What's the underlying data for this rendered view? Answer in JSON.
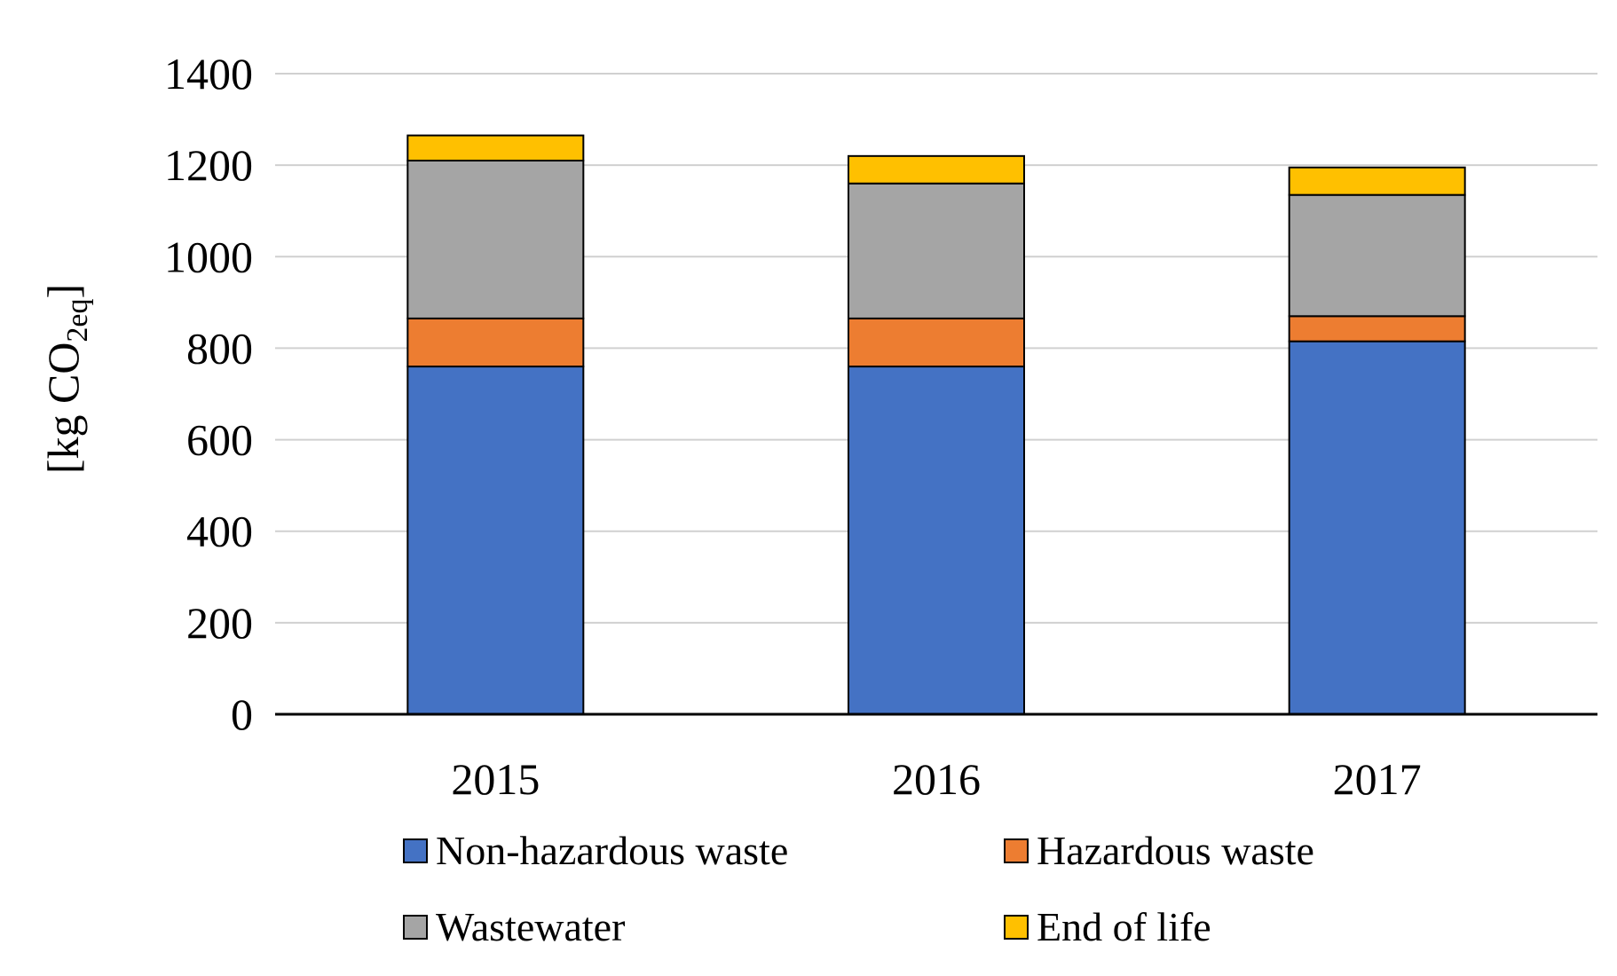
{
  "chart_data": {
    "type": "bar",
    "stacked": true,
    "categories": [
      "2015",
      "2016",
      "2017"
    ],
    "series": [
      {
        "name": "Non-hazardous waste",
        "color": "#4472C4",
        "values": [
          760,
          760,
          815
        ]
      },
      {
        "name": "Hazardous waste",
        "color": "#ED7D31",
        "values": [
          105,
          105,
          55
        ]
      },
      {
        "name": "Wastewater",
        "color": "#A5A5A5",
        "values": [
          345,
          295,
          265
        ]
      },
      {
        "name": "End of life",
        "color": "#FFC000",
        "values": [
          55,
          60,
          60
        ]
      }
    ],
    "ylabel_main": "[kg CO",
    "ylabel_sub": "2eq",
    "ylabel_close": "]",
    "ylim": [
      0,
      1400
    ],
    "yticks": [
      "0",
      "200",
      "400",
      "600",
      "800",
      "1000",
      "1200",
      "1400"
    ],
    "grid": true,
    "legend_position": "bottom"
  }
}
